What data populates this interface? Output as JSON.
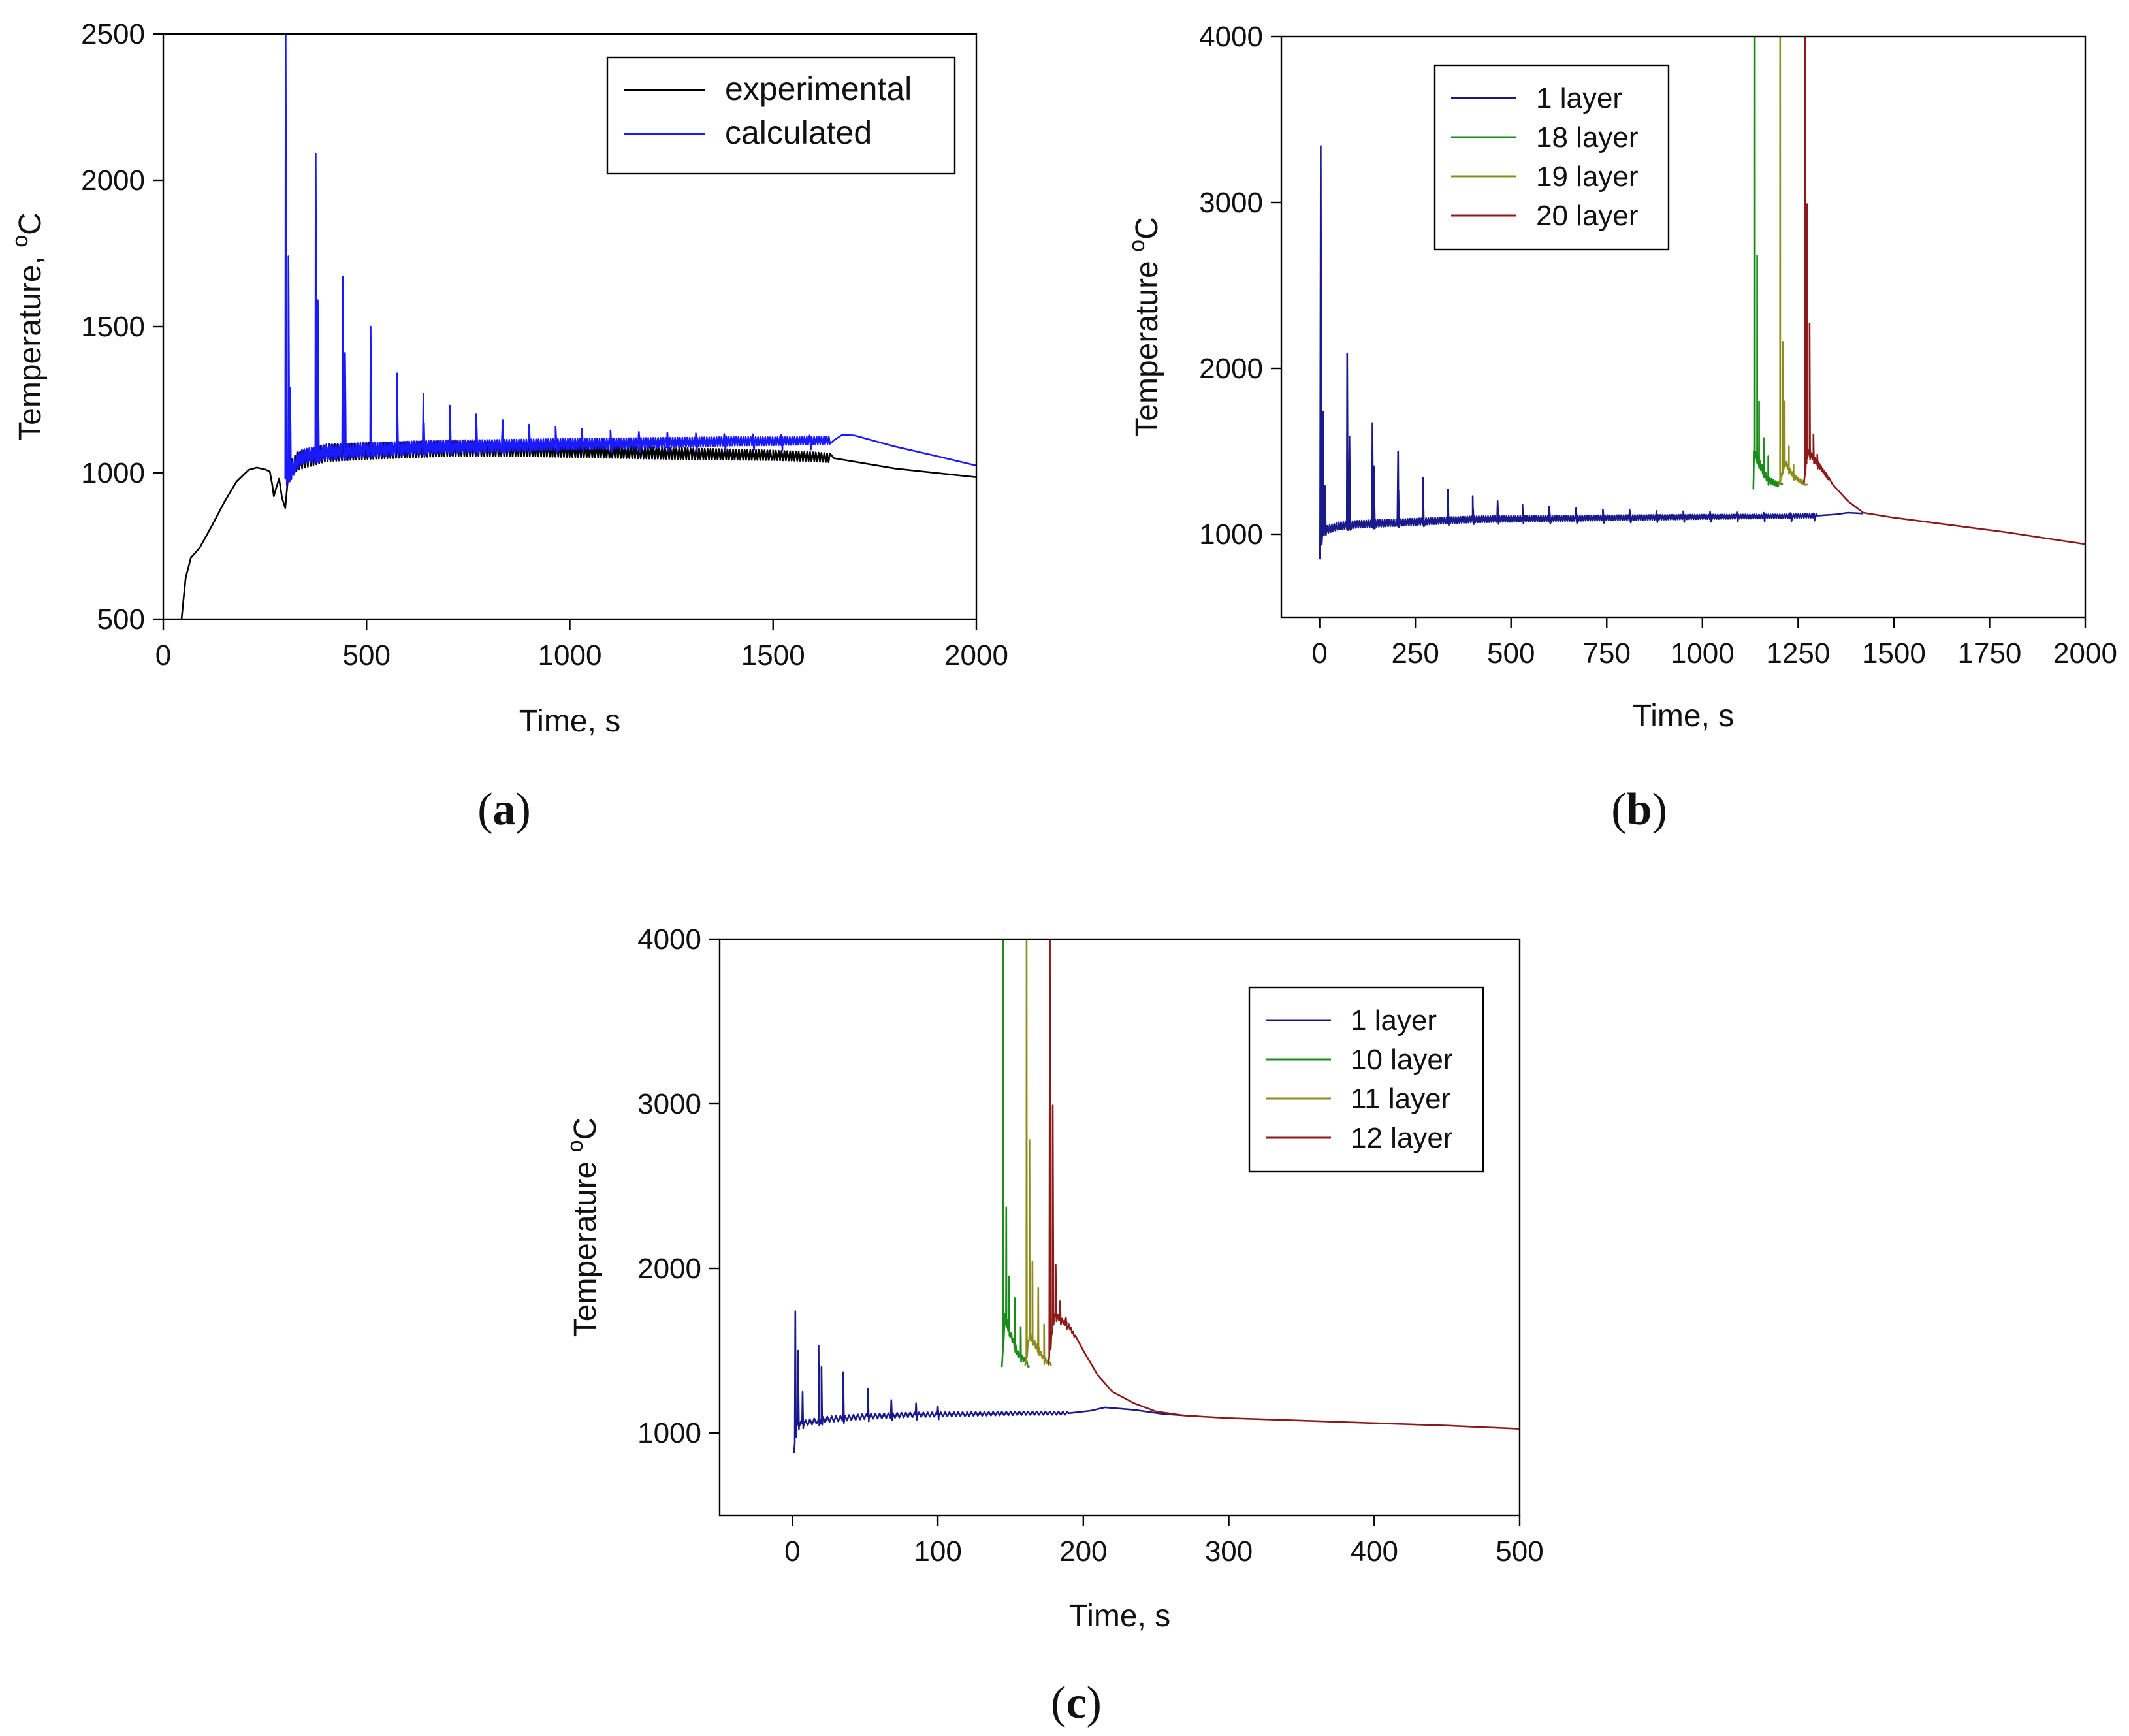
{
  "chart_data": [
    {
      "id": "a",
      "panel_label": "a",
      "type": "line",
      "xlabel": "Time, s",
      "ylabel": "Temperature, ",
      "ylabel_sup": "o",
      "ylabel_tail": "C",
      "xlim": [
        0,
        2000
      ],
      "ylim": [
        500,
        2500
      ],
      "xticks": [
        0,
        500,
        1000,
        1500,
        2000
      ],
      "yticks": [
        500,
        1000,
        1500,
        2000,
        2500
      ],
      "legend": "top-right",
      "series": [
        {
          "name": "experimental",
          "color": "#000000",
          "smooth": [
            [
              45,
              500
            ],
            [
              55,
              640
            ],
            [
              68,
              710
            ],
            [
              90,
              745
            ],
            [
              120,
              820
            ],
            [
              150,
              900
            ],
            [
              180,
              970
            ],
            [
              210,
              1010
            ],
            [
              230,
              1018
            ],
            [
              250,
              1012
            ],
            [
              262,
              1005
            ],
            [
              268,
              960
            ],
            [
              272,
              920
            ],
            [
              278,
              950
            ],
            [
              285,
              980
            ],
            [
              292,
              915
            ],
            [
              300,
              880
            ],
            [
              308,
              1000
            ],
            [
              330,
              1040
            ],
            [
              400,
              1068
            ],
            [
              500,
              1075
            ],
            [
              700,
              1083
            ],
            [
              900,
              1080
            ],
            [
              1100,
              1072
            ],
            [
              1300,
              1065
            ],
            [
              1500,
              1060
            ],
            [
              1600,
              1055
            ],
            [
              1650,
              1050
            ],
            [
              1800,
              1015
            ],
            [
              2000,
              985
            ]
          ],
          "osc": {
            "start": 310,
            "end": 1640,
            "period": 7,
            "amp": 30
          }
        },
        {
          "name": "calculated",
          "color": "#1a1aff",
          "smooth": [
            [
              300,
              980
            ],
            [
              340,
              1055
            ],
            [
              400,
              1070
            ],
            [
              500,
              1078
            ],
            [
              600,
              1085
            ],
            [
              700,
              1090
            ],
            [
              800,
              1092
            ],
            [
              900,
              1095
            ],
            [
              1000,
              1098
            ],
            [
              1100,
              1100
            ],
            [
              1200,
              1103
            ],
            [
              1300,
              1105
            ],
            [
              1400,
              1108
            ],
            [
              1500,
              1108
            ],
            [
              1600,
              1110
            ],
            [
              1650,
              1112
            ],
            [
              1670,
              1130
            ],
            [
              1700,
              1128
            ],
            [
              1800,
              1090
            ],
            [
              1900,
              1058
            ],
            [
              2000,
              1025
            ]
          ],
          "spikes": [
            [
              301,
              2500
            ],
            [
              308,
              1740
            ],
            [
              312,
              1290
            ],
            [
              375,
              2090
            ],
            [
              380,
              1590
            ],
            [
              442,
              1670
            ],
            [
              447,
              1410
            ],
            [
              510,
              1500
            ],
            [
              575,
              1340
            ],
            [
              640,
              1270
            ],
            [
              705,
              1230
            ],
            [
              770,
              1200
            ],
            [
              835,
              1180
            ],
            [
              900,
              1165
            ],
            [
              965,
              1158
            ],
            [
              1030,
              1150
            ],
            [
              1100,
              1145
            ],
            [
              1170,
              1140
            ],
            [
              1240,
              1138
            ],
            [
              1310,
              1135
            ],
            [
              1380,
              1133
            ],
            [
              1450,
              1132
            ],
            [
              1520,
              1130
            ],
            [
              1590,
              1128
            ]
          ],
          "osc": {
            "start": 305,
            "end": 1640,
            "period": 6,
            "amp": 25
          }
        }
      ]
    },
    {
      "id": "b",
      "panel_label": "b",
      "type": "line",
      "xlabel": "Time, s",
      "ylabel": "Temperature ",
      "ylabel_sup": "o",
      "ylabel_tail": "C",
      "xlim": [
        -100,
        2000
      ],
      "ylim": [
        500,
        4000
      ],
      "xticks": [
        0,
        250,
        500,
        750,
        1000,
        1250,
        1500,
        1750,
        2000
      ],
      "yticks": [
        1000,
        2000,
        3000,
        4000
      ],
      "legend": "top-left",
      "series": [
        {
          "name": "1 layer",
          "color": "#1a1a8c",
          "smooth": [
            [
              0,
              850
            ],
            [
              8,
              1020
            ],
            [
              50,
              1050
            ],
            [
              100,
              1060
            ],
            [
              200,
              1070
            ],
            [
              300,
              1080
            ],
            [
              400,
              1090
            ],
            [
              600,
              1095
            ],
            [
              800,
              1100
            ],
            [
              1000,
              1105
            ],
            [
              1200,
              1108
            ],
            [
              1300,
              1112
            ],
            [
              1350,
              1120
            ],
            [
              1380,
              1130
            ],
            [
              1420,
              1125
            ]
          ],
          "spikes": [
            [
              3,
              3340
            ],
            [
              9,
              1740
            ],
            [
              14,
              1290
            ],
            [
              72,
              2090
            ],
            [
              78,
              1590
            ],
            [
              138,
              1670
            ],
            [
              142,
              1410
            ],
            [
              205,
              1500
            ],
            [
              270,
              1340
            ],
            [
              335,
              1270
            ],
            [
              400,
              1230
            ],
            [
              465,
              1200
            ],
            [
              530,
              1180
            ],
            [
              600,
              1165
            ],
            [
              670,
              1158
            ],
            [
              740,
              1150
            ],
            [
              810,
              1145
            ],
            [
              880,
              1140
            ],
            [
              950,
              1138
            ],
            [
              1020,
              1135
            ],
            [
              1090,
              1133
            ],
            [
              1160,
              1130
            ],
            [
              1230,
              1128
            ],
            [
              1290,
              1126
            ]
          ],
          "osc": {
            "start": 8,
            "end": 1300,
            "period": 6,
            "amp": 22
          }
        },
        {
          "name": "18 layer",
          "color": "#1a8c1a",
          "smooth": [
            [
              1133,
              1270
            ],
            [
              1135,
              1500
            ],
            [
              1150,
              1420
            ],
            [
              1170,
              1330
            ],
            [
              1195,
              1300
            ],
            [
              1210,
              1300
            ]
          ],
          "spikes": [
            [
              1137,
              4000
            ],
            [
              1143,
              2680
            ],
            [
              1148,
              1800
            ],
            [
              1160,
              1580
            ],
            [
              1172,
              1470
            ]
          ],
          "osc": {
            "start": 1140,
            "end": 1200,
            "period": 5,
            "amp": 25
          }
        },
        {
          "name": "19 layer",
          "color": "#8c8c1a",
          "smooth": [
            [
              1200,
              1300
            ],
            [
              1215,
              1440
            ],
            [
              1235,
              1360
            ],
            [
              1255,
              1320
            ],
            [
              1275,
              1300
            ]
          ],
          "spikes": [
            [
              1203,
              4000
            ],
            [
              1210,
              2160
            ],
            [
              1215,
              1800
            ],
            [
              1226,
              1530
            ],
            [
              1238,
              1420
            ]
          ],
          "osc": {
            "start": 1205,
            "end": 1268,
            "period": 5,
            "amp": 20
          }
        },
        {
          "name": "20 layer",
          "color": "#8c1a1a",
          "smooth": [
            [
              1265,
              1310
            ],
            [
              1275,
              1500
            ],
            [
              1290,
              1460
            ],
            [
              1310,
              1400
            ],
            [
              1340,
              1300
            ],
            [
              1380,
              1200
            ],
            [
              1420,
              1130
            ],
            [
              1500,
              1100
            ],
            [
              1600,
              1070
            ],
            [
              1700,
              1040
            ],
            [
              1800,
              1010
            ],
            [
              1900,
              975
            ],
            [
              2000,
              940
            ]
          ],
          "spikes": [
            [
              1268,
              4000
            ],
            [
              1273,
              2990
            ],
            [
              1280,
              2270
            ],
            [
              1290,
              1600
            ],
            [
              1300,
              1480
            ]
          ],
          "osc": {
            "start": 1270,
            "end": 1330,
            "period": 4,
            "amp": 18
          }
        }
      ]
    },
    {
      "id": "c",
      "panel_label": "c",
      "type": "line",
      "xlabel": "Time, s",
      "ylabel": "Temperature ",
      "ylabel_sup": "o",
      "ylabel_tail": "C",
      "xlim": [
        -50,
        500
      ],
      "ylim": [
        500,
        4000
      ],
      "xticks": [
        0,
        100,
        200,
        300,
        400,
        500
      ],
      "yticks": [
        1000,
        2000,
        3000,
        4000
      ],
      "legend": "top-right",
      "series": [
        {
          "name": "1 layer",
          "color": "#1a1a8c",
          "smooth": [
            [
              1,
              880
            ],
            [
              3,
              1050
            ],
            [
              20,
              1080
            ],
            [
              50,
              1100
            ],
            [
              80,
              1110
            ],
            [
              120,
              1115
            ],
            [
              160,
              1120
            ],
            [
              190,
              1120
            ],
            [
              205,
              1135
            ],
            [
              215,
              1155
            ],
            [
              235,
              1140
            ],
            [
              255,
              1115
            ],
            [
              280,
              1100
            ]
          ],
          "spikes": [
            [
              2,
              1740
            ],
            [
              4,
              1500
            ],
            [
              7,
              1250
            ],
            [
              18,
              1530
            ],
            [
              20,
              1400
            ],
            [
              35,
              1370
            ],
            [
              52,
              1270
            ],
            [
              68,
              1200
            ],
            [
              85,
              1180
            ],
            [
              100,
              1160
            ]
          ],
          "osc": {
            "start": 3,
            "end": 190,
            "period": 3,
            "amp": 18
          }
        },
        {
          "name": "10 layer",
          "color": "#1a8c1a",
          "smooth": [
            [
              144,
              1400
            ],
            [
              146,
              1700
            ],
            [
              150,
              1600
            ],
            [
              155,
              1480
            ],
            [
              160,
              1440
            ],
            [
              163,
              1400
            ]
          ],
          "spikes": [
            [
              145,
              4000
            ],
            [
              147,
              2370
            ],
            [
              149,
              1950
            ],
            [
              153,
              1820
            ],
            [
              157,
              1640
            ]
          ],
          "osc": {
            "start": 146,
            "end": 162,
            "period": 1.5,
            "amp": 25
          }
        },
        {
          "name": "11 layer",
          "color": "#8c8c1a",
          "smooth": [
            [
              160,
              1410
            ],
            [
              163,
              1600
            ],
            [
              168,
              1520
            ],
            [
              173,
              1450
            ],
            [
              178,
              1410
            ]
          ],
          "spikes": [
            [
              161,
              4000
            ],
            [
              163,
              2780
            ],
            [
              165,
              2040
            ],
            [
              169,
              1880
            ],
            [
              173,
              1660
            ]
          ],
          "osc": {
            "start": 162,
            "end": 177,
            "period": 1.5,
            "amp": 22
          }
        },
        {
          "name": "12 layer",
          "color": "#8c1a1a",
          "smooth": [
            [
              176,
              1420
            ],
            [
              180,
              1720
            ],
            [
              190,
              1650
            ],
            [
              200,
              1500
            ],
            [
              210,
              1350
            ],
            [
              220,
              1250
            ],
            [
              235,
              1180
            ],
            [
              250,
              1130
            ],
            [
              270,
              1105
            ],
            [
              300,
              1090
            ],
            [
              350,
              1075
            ],
            [
              400,
              1060
            ],
            [
              450,
              1045
            ],
            [
              500,
              1025
            ]
          ],
          "spikes": [
            [
              177,
              4000
            ],
            [
              179,
              2990
            ],
            [
              181,
              2020
            ],
            [
              184,
              1800
            ],
            [
              188,
              1700
            ]
          ],
          "osc": {
            "start": 178,
            "end": 195,
            "period": 1.5,
            "amp": 18
          }
        }
      ]
    }
  ]
}
